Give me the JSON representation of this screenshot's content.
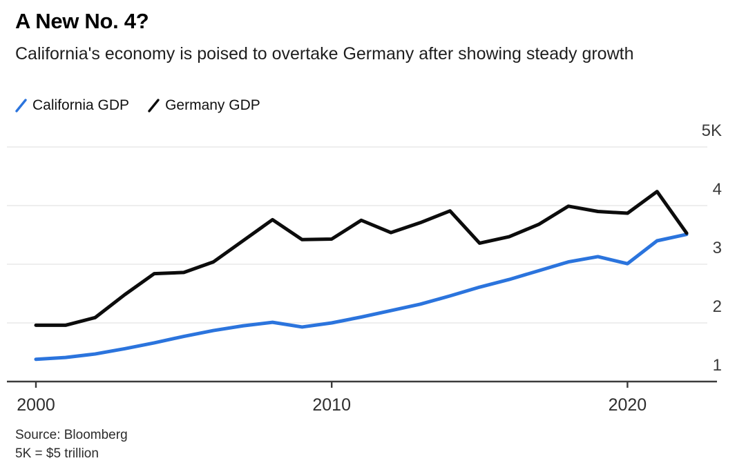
{
  "header": {
    "title": "A New No. 4?",
    "subtitle": "California's economy is poised to overtake Germany after showing steady growth"
  },
  "legend": [
    {
      "label": "California GDP",
      "color": "#2B74DD"
    },
    {
      "label": "Germany GDP",
      "color": "#0C0C0C"
    }
  ],
  "source": {
    "line1": "Source: Bloomberg",
    "line2": "5K = $5 trillion"
  },
  "colors": {
    "background": "#FFFFFF",
    "california_line": "#2B74DD",
    "germany_line": "#0C0C0C",
    "gridline": "#E9E9E9",
    "axis": "#3B3B3B"
  },
  "chart_data": {
    "type": "line",
    "title": "A New No. 4?",
    "subtitle": "California's economy is poised to overtake Germany after showing steady growth",
    "xlabel": "",
    "ylabel": "",
    "unit_note": "5K = $5 trillion",
    "grid": "horizontal",
    "legend_position": "top-left",
    "ytick_side": "right",
    "ylim": [
      1,
      5
    ],
    "x": [
      2000,
      2001,
      2002,
      2003,
      2004,
      2005,
      2006,
      2007,
      2008,
      2009,
      2010,
      2011,
      2012,
      2013,
      2014,
      2015,
      2016,
      2017,
      2018,
      2019,
      2020,
      2021,
      2022
    ],
    "xticks": [
      2000,
      2010,
      2020
    ],
    "yticks": [
      {
        "value": 5,
        "label": "5K"
      },
      {
        "value": 4,
        "label": "4"
      },
      {
        "value": 3,
        "label": "3"
      },
      {
        "value": 2,
        "label": "2"
      },
      {
        "value": 1,
        "label": "1"
      }
    ],
    "series": [
      {
        "name": "California GDP",
        "color": "#2B74DD",
        "values": [
          1.38,
          1.41,
          1.47,
          1.56,
          1.66,
          1.77,
          1.87,
          1.95,
          2.01,
          1.93,
          2.0,
          2.1,
          2.21,
          2.32,
          2.46,
          2.61,
          2.74,
          2.89,
          3.04,
          3.13,
          3.01,
          3.4,
          3.51
        ]
      },
      {
        "name": "Germany GDP",
        "color": "#0C0C0C",
        "values": [
          1.96,
          1.96,
          2.09,
          2.48,
          2.84,
          2.86,
          3.04,
          3.4,
          3.76,
          3.42,
          3.43,
          3.75,
          3.54,
          3.71,
          3.91,
          3.36,
          3.47,
          3.68,
          3.99,
          3.9,
          3.87,
          4.24,
          3.53
        ]
      }
    ]
  }
}
